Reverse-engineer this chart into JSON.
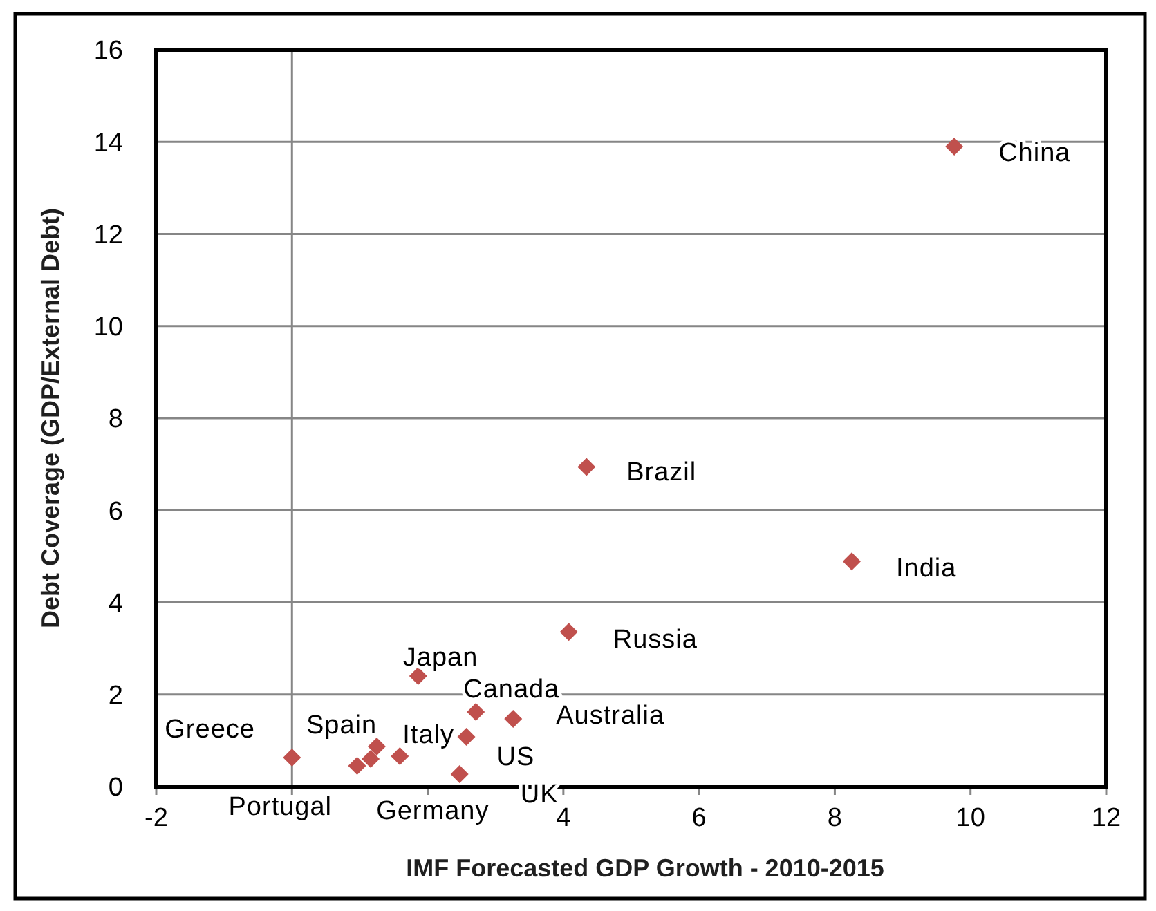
{
  "chart_data": {
    "type": "scatter",
    "xlabel": "IMF Forecasted GDP Growth - 2010-2015",
    "ylabel": "Debt Coverage  (GDP/External Debt)",
    "xlim": [
      -2,
      12
    ],
    "xticks": [
      -2,
      {
        "value": 0,
        "label": null
      },
      {
        "value": 2,
        "label": null
      },
      4,
      6,
      8,
      10,
      12
    ],
    "ylim": [
      0,
      16
    ],
    "yticks": [
      0,
      2,
      4,
      6,
      8,
      10,
      12,
      14,
      16
    ],
    "grid": "y",
    "legend": false,
    "marker": "diamond",
    "ref_lines": [
      {
        "axis": "x",
        "value": 0,
        "color": "#868686"
      }
    ],
    "series": [
      {
        "name": "China",
        "color": "#c0504d",
        "x": [
          9.76
        ],
        "values": [
          13.9
        ]
      },
      {
        "name": "Brazil",
        "color": "#c0504d",
        "x": [
          4.34
        ],
        "values": [
          6.94
        ]
      },
      {
        "name": "India",
        "color": "#c0504d",
        "x": [
          8.25
        ],
        "values": [
          4.89
        ]
      },
      {
        "name": "Russia",
        "color": "#c0504d",
        "x": [
          4.08
        ],
        "values": [
          3.36
        ]
      },
      {
        "name": "Japan",
        "color": "#c0504d",
        "x": [
          1.86
        ],
        "values": [
          2.4
        ]
      },
      {
        "name": "Canada",
        "color": "#c0504d",
        "x": [
          2.71
        ],
        "values": [
          1.62
        ]
      },
      {
        "name": "Australia",
        "color": "#c0504d",
        "x": [
          3.26
        ],
        "values": [
          1.47
        ]
      },
      {
        "name": "US",
        "color": "#c0504d",
        "x": [
          2.57
        ],
        "values": [
          1.08
        ]
      },
      {
        "name": "UK",
        "color": "#c0504d",
        "x": [
          2.47
        ],
        "values": [
          0.27
        ]
      },
      {
        "name": "Germany",
        "color": "#c0504d",
        "x": [
          1.16
        ],
        "values": [
          0.6
        ]
      },
      {
        "name": "Italy",
        "color": "#c0504d",
        "x": [
          1.59
        ],
        "values": [
          0.66
        ]
      },
      {
        "name": "Spain",
        "color": "#c0504d",
        "x": [
          1.25
        ],
        "values": [
          0.87
        ]
      },
      {
        "name": "Portugal",
        "color": "#c0504d",
        "x": [
          0.96
        ],
        "values": [
          0.45
        ]
      },
      {
        "name": "Greece",
        "color": "#c0504d",
        "x": [
          0
        ],
        "values": [
          0.63
        ]
      }
    ]
  }
}
